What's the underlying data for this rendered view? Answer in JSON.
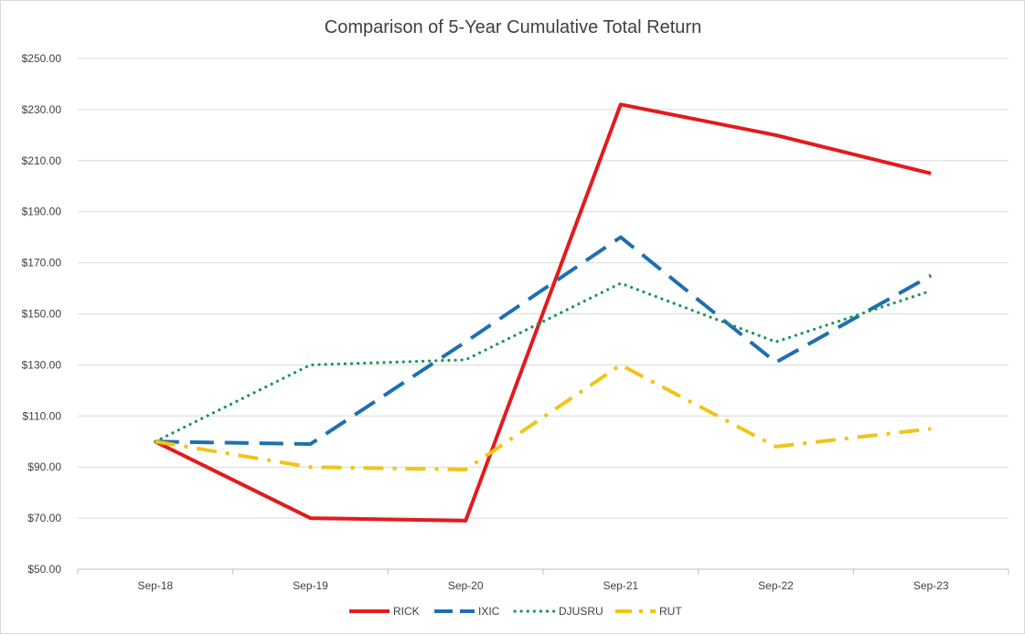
{
  "chart_data": {
    "type": "line",
    "title": "Comparison of 5-Year Cumulative Total Return",
    "xlabel": "",
    "ylabel": "",
    "categories": [
      "Sep-18",
      "Sep-19",
      "Sep-20",
      "Sep-21",
      "Sep-22",
      "Sep-23"
    ],
    "ylim": [
      50,
      250
    ],
    "yticks": [
      50,
      70,
      90,
      110,
      130,
      150,
      170,
      190,
      210,
      230,
      250
    ],
    "ytick_labels": [
      "$50.00",
      "$70.00",
      "$90.00",
      "$110.00",
      "$130.00",
      "$150.00",
      "$170.00",
      "$190.00",
      "$210.00",
      "$230.00",
      "$250.00"
    ],
    "grid": true,
    "legend_position": "bottom",
    "series": [
      {
        "name": "RICK",
        "values": [
          100,
          70,
          69,
          232,
          220,
          205
        ],
        "color": "#e41a1c",
        "style": "solid"
      },
      {
        "name": "IXIC",
        "values": [
          100,
          99,
          139,
          180,
          131,
          165
        ],
        "color": "#1f6fb0",
        "style": "longdash"
      },
      {
        "name": "DJUSRU",
        "values": [
          100,
          130,
          132,
          162,
          139,
          159
        ],
        "color": "#1a9850",
        "style": "dotted"
      },
      {
        "name": "RUT",
        "values": [
          100,
          90,
          89,
          130,
          98,
          105
        ],
        "color": "#f2c418",
        "style": "dashdot"
      }
    ]
  }
}
